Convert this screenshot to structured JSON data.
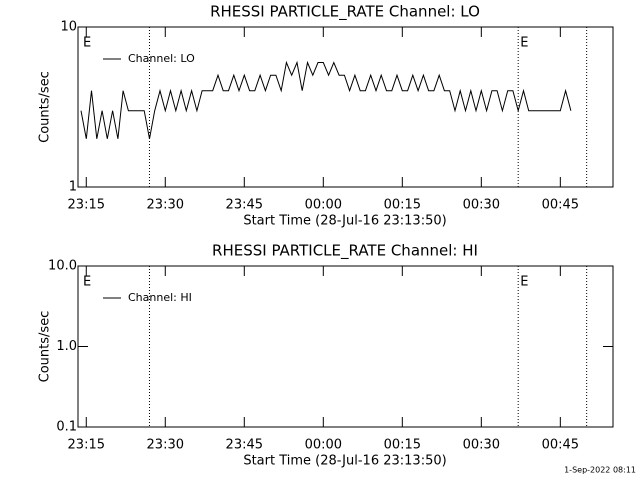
{
  "chart_data": [
    {
      "type": "line",
      "title": "RHESSI PARTICLE_RATE Channel: LO",
      "y_label": "Counts/sec",
      "x_label": "Start Time (28-Jul-16 23:13:50)",
      "log_y": true,
      "ylim": [
        1,
        10
      ],
      "yticks": [
        1,
        10
      ],
      "xlim": [
        "23:14",
        "00:55"
      ],
      "xticks": [
        "23:15",
        "23:30",
        "23:45",
        "00:00",
        "00:15",
        "00:30",
        "00:45"
      ],
      "vlines": [
        "23:27",
        "00:37",
        "00:50"
      ],
      "annotations": [
        {
          "text": "E",
          "x": "23:14"
        },
        {
          "text": "E",
          "x": "00:37"
        }
      ],
      "legend": "upper left",
      "x": [
        "23:14",
        "23:15",
        "23:16",
        "23:17",
        "23:18",
        "23:19",
        "23:20",
        "23:21",
        "23:22",
        "23:23",
        "23:24",
        "23:25",
        "23:26",
        "23:27",
        "23:28",
        "23:29",
        "23:30",
        "23:31",
        "23:32",
        "23:33",
        "23:34",
        "23:35",
        "23:36",
        "23:37",
        "23:38",
        "23:39",
        "23:40",
        "23:41",
        "23:42",
        "23:43",
        "23:44",
        "23:45",
        "23:46",
        "23:47",
        "23:48",
        "23:49",
        "23:50",
        "23:51",
        "23:52",
        "23:53",
        "23:54",
        "23:55",
        "23:56",
        "23:57",
        "23:58",
        "23:59",
        "00:00",
        "00:01",
        "00:02",
        "00:03",
        "00:04",
        "00:05",
        "00:06",
        "00:07",
        "00:08",
        "00:09",
        "00:10",
        "00:11",
        "00:12",
        "00:13",
        "00:14",
        "00:15",
        "00:16",
        "00:17",
        "00:18",
        "00:19",
        "00:20",
        "00:21",
        "00:22",
        "00:23",
        "00:24",
        "00:25",
        "00:26",
        "00:27",
        "00:28",
        "00:29",
        "00:30",
        "00:31",
        "00:32",
        "00:33",
        "00:34",
        "00:35",
        "00:36",
        "00:37",
        "00:38",
        "00:39",
        "00:40",
        "00:41",
        "00:42",
        "00:43",
        "00:44",
        "00:45",
        "00:46",
        "00:47"
      ],
      "series": [
        {
          "name": "Channel: LO",
          "color": "#000000",
          "values": [
            3,
            2,
            4,
            2,
            3,
            2,
            3,
            2,
            4,
            3,
            3,
            3,
            3,
            2,
            3,
            4,
            3,
            4,
            3,
            4,
            3,
            4,
            3,
            4,
            4,
            4,
            5,
            4,
            4,
            5,
            4,
            5,
            4,
            4,
            5,
            4,
            5,
            5,
            4,
            6,
            5,
            6,
            4,
            6,
            5,
            6,
            6,
            5,
            6,
            5,
            5,
            4,
            5,
            4,
            4,
            5,
            4,
            5,
            4,
            4,
            5,
            4,
            4,
            5,
            4,
            5,
            4,
            4,
            5,
            4,
            4,
            3,
            4,
            3,
            4,
            3,
            4,
            3,
            4,
            4,
            3,
            4,
            4,
            3,
            4,
            3,
            3,
            3,
            3,
            3,
            3,
            3,
            4,
            3
          ]
        }
      ]
    },
    {
      "type": "line",
      "title": "RHESSI PARTICLE_RATE Channel: HI",
      "y_label": "Counts/sec",
      "x_label": "Start Time (28-Jul-16 23:13:50)",
      "log_y": true,
      "ylim": [
        0.1,
        10
      ],
      "yticks": [
        {
          "value": 0.1,
          "label": "0.1"
        },
        {
          "value": 1,
          "label": "1.0"
        },
        {
          "value": 10,
          "label": "10.0"
        }
      ],
      "xlim": [
        "23:14",
        "00:55"
      ],
      "xticks": [
        "23:15",
        "23:30",
        "23:45",
        "00:00",
        "00:15",
        "00:30",
        "00:45"
      ],
      "vlines": [
        "23:27",
        "00:37",
        "00:50"
      ],
      "annotations": [
        {
          "text": "E",
          "x": "23:14"
        },
        {
          "text": "E",
          "x": "00:37"
        }
      ],
      "legend": "upper left",
      "x": [],
      "series": [
        {
          "name": "Channel: HI",
          "color": "#000000",
          "values": []
        }
      ]
    }
  ],
  "footer": "1-Sep-2022 08:11"
}
